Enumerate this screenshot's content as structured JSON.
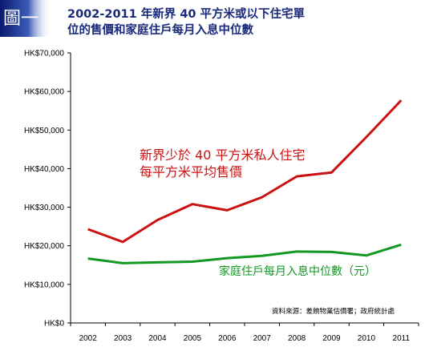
{
  "badge_text": "圖一",
  "title_line1": "2002-2011 年新界 40 平方米或以下住宅單",
  "title_line2": "位的售價和家庭住戶每月入息中位數",
  "chart_data": {
    "type": "line",
    "title": "2002-2011 年新界 40 平方米或以下住宅單位的售價和家庭住戶每月入息中位數",
    "x": [
      "2002",
      "2003",
      "2004",
      "2005",
      "2006",
      "2007",
      "2008",
      "2009",
      "2010",
      "2011"
    ],
    "y_ticks": [
      "HK$0",
      "HK$10,000",
      "HK$20,000",
      "HK$30,000",
      "HK$40,000",
      "HK$50,000",
      "HK$60,000",
      "HK$70,000"
    ],
    "ylim": [
      0,
      70000
    ],
    "grid": false,
    "series": [
      {
        "name_lines": [
          "新界少於 40 平方米私人住宅",
          "每平方米平均售價"
        ],
        "color": "#cc1111",
        "values": [
          24300,
          21000,
          26700,
          30800,
          29200,
          32600,
          38000,
          39000,
          48200,
          57700
        ]
      },
      {
        "name_lines": [
          "家庭住戶每月入息中位數（元）"
        ],
        "color": "#119922",
        "values": [
          16700,
          15500,
          15700,
          15900,
          16800,
          17400,
          18500,
          18400,
          17500,
          20300
        ]
      }
    ],
    "source_note": "資料來源：差餉物業估價署；政府統計處"
  }
}
